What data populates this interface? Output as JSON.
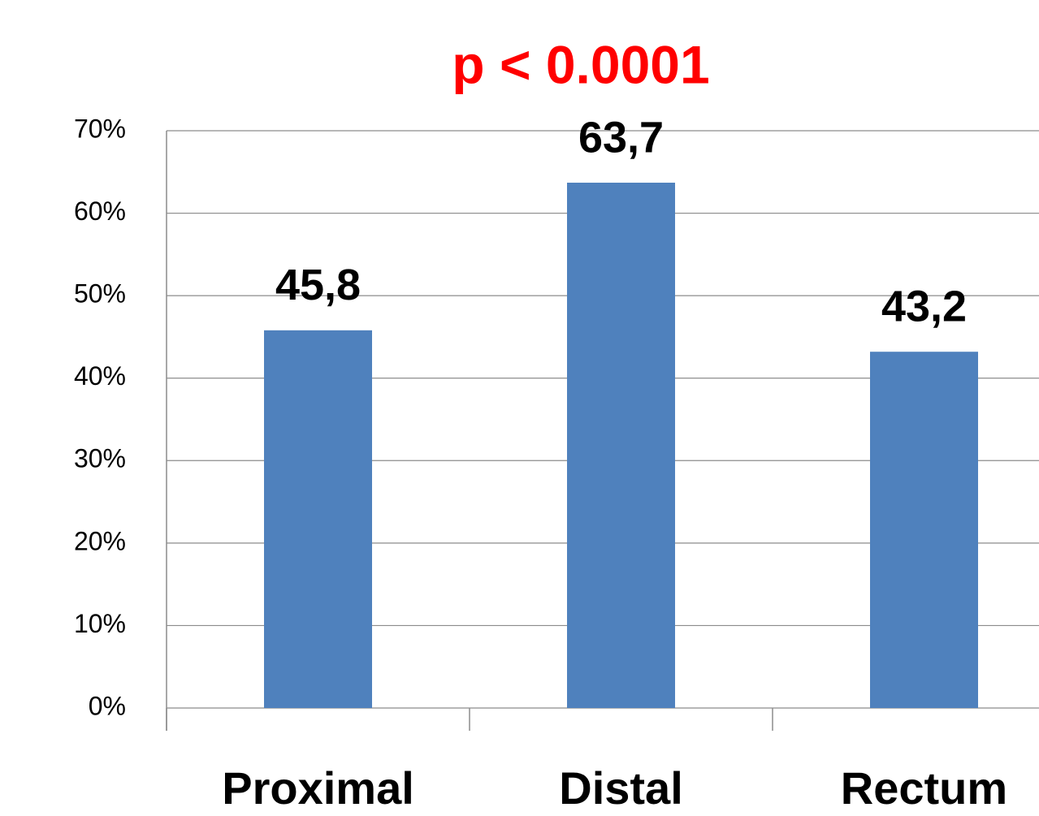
{
  "chart_data": {
    "type": "bar",
    "title": "p < 0.0001",
    "categories": [
      "Proximal",
      "Distal",
      "Rectum"
    ],
    "values": [
      45.8,
      63.7,
      43.2
    ],
    "value_labels": [
      "45,8",
      "63,7",
      "43,2"
    ],
    "color": "#4f81bd",
    "title_color": "#ff0000",
    "ylim": [
      0,
      70
    ],
    "yticks": [
      {
        "value": 0,
        "label": "0%"
      },
      {
        "value": 10,
        "label": "10%"
      },
      {
        "value": 20,
        "label": "20%"
      },
      {
        "value": 30,
        "label": "30%"
      },
      {
        "value": 40,
        "label": "40%"
      },
      {
        "value": 50,
        "label": "50%"
      },
      {
        "value": 60,
        "label": "60%"
      },
      {
        "value": 70,
        "label": "70%"
      }
    ],
    "grid": true
  }
}
